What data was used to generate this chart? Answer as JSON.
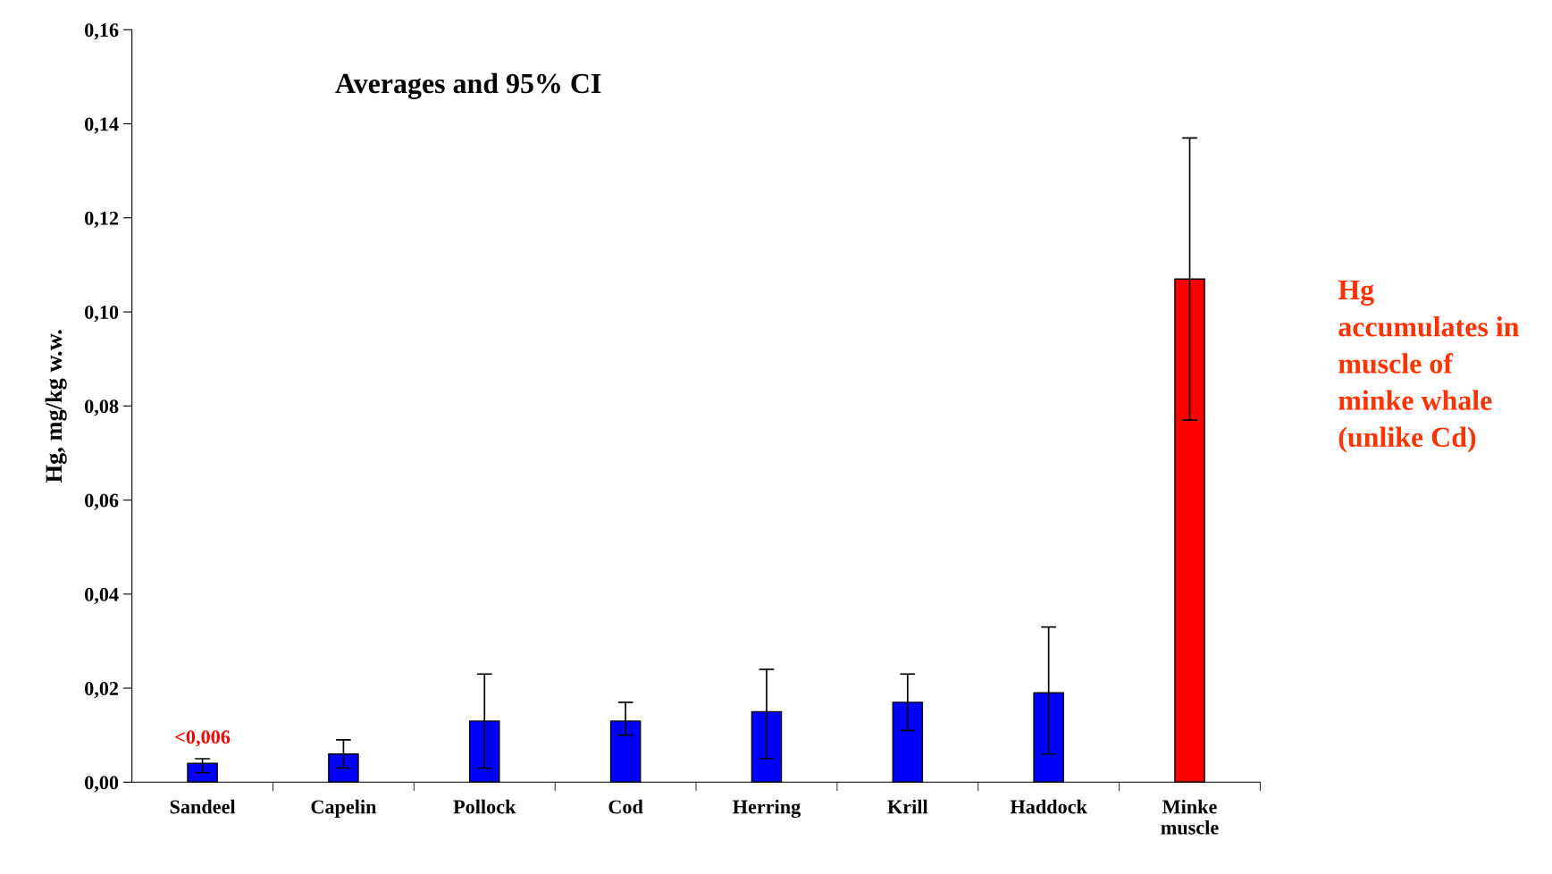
{
  "chart_data": {
    "type": "bar",
    "title": "Averages and 95% CI",
    "ylabel": "Hg, mg/kg w.w.",
    "categories": [
      "Sandeel",
      "Capelin",
      "Pollock",
      "Cod",
      "Herring",
      "Krill",
      "Haddock",
      "Minke\nmuscle"
    ],
    "values": [
      0.004,
      0.006,
      0.013,
      0.013,
      0.015,
      0.017,
      0.019,
      0.107
    ],
    "colors": [
      "#0000ff",
      "#0000ff",
      "#0000ff",
      "#0000ff",
      "#0000ff",
      "#0000ff",
      "#0000ff",
      "#ff0000"
    ],
    "errors": [
      [
        0.002,
        0.005
      ],
      [
        0.003,
        0.009
      ],
      [
        0.003,
        0.023
      ],
      [
        0.01,
        0.017
      ],
      [
        0.005,
        0.024
      ],
      [
        0.011,
        0.023
      ],
      [
        0.006,
        0.033
      ],
      [
        0.077,
        0.137
      ]
    ],
    "ylim": [
      0,
      0.16
    ],
    "yticks": [
      {
        "value": 0,
        "label": "0,00"
      },
      {
        "value": 0.02,
        "label": "0,02"
      },
      {
        "value": 0.04,
        "label": "0,04"
      },
      {
        "value": 0.06,
        "label": "0,06"
      },
      {
        "value": 0.08,
        "label": "0,08"
      },
      {
        "value": 0.1,
        "label": "0,10"
      },
      {
        "value": 0.12,
        "label": "0,12"
      },
      {
        "value": 0.14,
        "label": "0,14"
      },
      {
        "value": 0.16,
        "label": "0,16"
      }
    ],
    "annotations": [
      "<0,006",
      "Hg\naccumulates in\nmuscle of\nminke whale\n(unlike Cd)"
    ],
    "grid": false,
    "legend": false
  }
}
